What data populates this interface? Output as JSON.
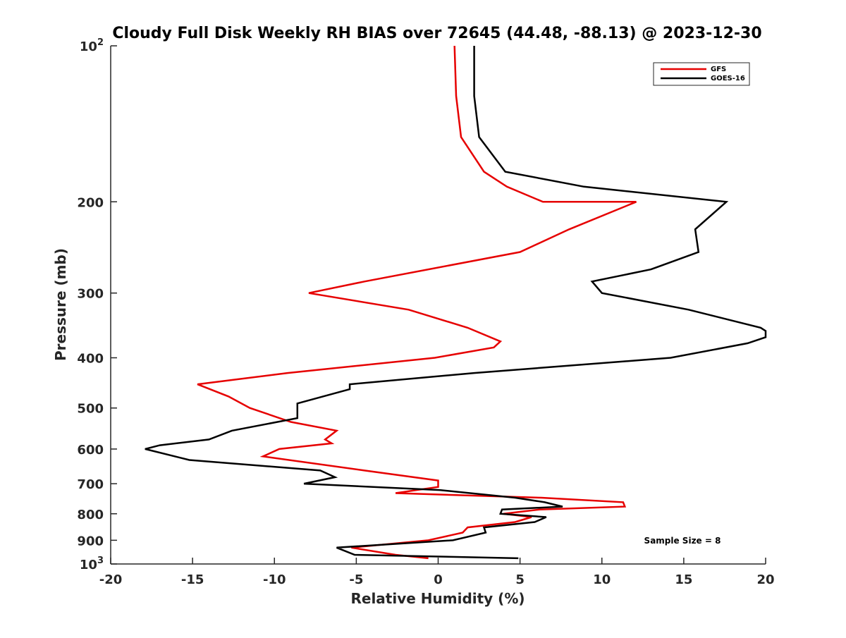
{
  "chart_data": {
    "type": "line",
    "title": "Cloudy Full Disk Weekly RH BIAS over 72645 (44.48, -88.13) @ 2023-12-30",
    "xlabel": "Relative Humidity (%)",
    "ylabel": "Pressure (mb)",
    "xlim": [
      -20,
      20
    ],
    "ylim": [
      100,
      1000
    ],
    "y_scale": "log",
    "y_reversed": true,
    "grid": false,
    "legend_position": "top-right",
    "annotation": "Sample Size = 8",
    "x_ticks": [
      "-20",
      "-15",
      "-10",
      "-5",
      "0",
      "5",
      "10",
      "15",
      "20"
    ],
    "y_ticks": [
      {
        "value": 100,
        "base": "10",
        "exp": "2"
      },
      {
        "value": 200,
        "label": "200"
      },
      {
        "value": 300,
        "label": "300"
      },
      {
        "value": 400,
        "label": "400"
      },
      {
        "value": 500,
        "label": "500"
      },
      {
        "value": 600,
        "label": "600"
      },
      {
        "value": 700,
        "label": "700"
      },
      {
        "value": 800,
        "label": "800"
      },
      {
        "value": 900,
        "label": "900"
      },
      {
        "value": 1000,
        "base": "10",
        "exp": "3"
      }
    ],
    "series": [
      {
        "name": "GFS",
        "color": "#e60000",
        "points": [
          [
            1.0,
            100
          ],
          [
            1.1,
            125
          ],
          [
            1.4,
            150
          ],
          [
            2.8,
            175
          ],
          [
            4.2,
            187
          ],
          [
            6.4,
            200
          ],
          [
            12.1,
            200
          ],
          [
            8.0,
            226
          ],
          [
            5.0,
            250
          ],
          [
            -4.5,
            285
          ],
          [
            -7.9,
            300
          ],
          [
            -1.8,
            323
          ],
          [
            1.8,
            350
          ],
          [
            3.8,
            372
          ],
          [
            3.4,
            382
          ],
          [
            -0.2,
            400
          ],
          [
            -9.2,
            428
          ],
          [
            -14.7,
            450
          ],
          [
            -12.8,
            475
          ],
          [
            -11.5,
            500
          ],
          [
            -9.0,
            532
          ],
          [
            -6.2,
            553
          ],
          [
            -6.9,
            575
          ],
          [
            -6.5,
            585
          ],
          [
            -9.7,
            600
          ],
          [
            -10.7,
            620
          ],
          [
            -4.5,
            660
          ],
          [
            0.0,
            690
          ],
          [
            0.0,
            710
          ],
          [
            -2.6,
            730
          ],
          [
            6.3,
            745
          ],
          [
            11.3,
            760
          ],
          [
            11.4,
            775
          ],
          [
            6.2,
            785
          ],
          [
            4.0,
            800
          ],
          [
            5.7,
            812
          ],
          [
            4.7,
            830
          ],
          [
            1.8,
            850
          ],
          [
            1.5,
            870
          ],
          [
            -0.6,
            900
          ],
          [
            -5.3,
            930
          ],
          [
            -2.6,
            960
          ],
          [
            -0.6,
            975
          ]
        ]
      },
      {
        "name": "GOES-16",
        "color": "#000000",
        "points": [
          [
            2.2,
            100
          ],
          [
            2.2,
            125
          ],
          [
            2.5,
            150
          ],
          [
            4.1,
            175
          ],
          [
            8.9,
            187
          ],
          [
            17.6,
            200
          ],
          [
            15.7,
            226
          ],
          [
            15.9,
            250
          ],
          [
            13.0,
            270
          ],
          [
            9.4,
            285
          ],
          [
            10.0,
            300
          ],
          [
            15.3,
            323
          ],
          [
            19.7,
            350
          ],
          [
            20.0,
            355
          ],
          [
            20.0,
            365
          ],
          [
            18.9,
            375
          ],
          [
            14.2,
            400
          ],
          [
            2.2,
            428
          ],
          [
            -5.4,
            450
          ],
          [
            -5.4,
            460
          ],
          [
            -8.6,
            490
          ],
          [
            -8.6,
            510
          ],
          [
            -8.6,
            523
          ],
          [
            -12.6,
            553
          ],
          [
            -14.0,
            575
          ],
          [
            -17.0,
            590
          ],
          [
            -17.9,
            600
          ],
          [
            -15.2,
            630
          ],
          [
            -7.2,
            660
          ],
          [
            -6.3,
            680
          ],
          [
            -8.2,
            700
          ],
          [
            0.1,
            720
          ],
          [
            4.7,
            745
          ],
          [
            6.5,
            760
          ],
          [
            7.6,
            775
          ],
          [
            3.9,
            785
          ],
          [
            3.8,
            800
          ],
          [
            6.6,
            812
          ],
          [
            5.9,
            830
          ],
          [
            2.8,
            850
          ],
          [
            2.9,
            870
          ],
          [
            0.9,
            900
          ],
          [
            -6.2,
            930
          ],
          [
            -5.1,
            960
          ],
          [
            4.9,
            975
          ]
        ]
      }
    ]
  }
}
